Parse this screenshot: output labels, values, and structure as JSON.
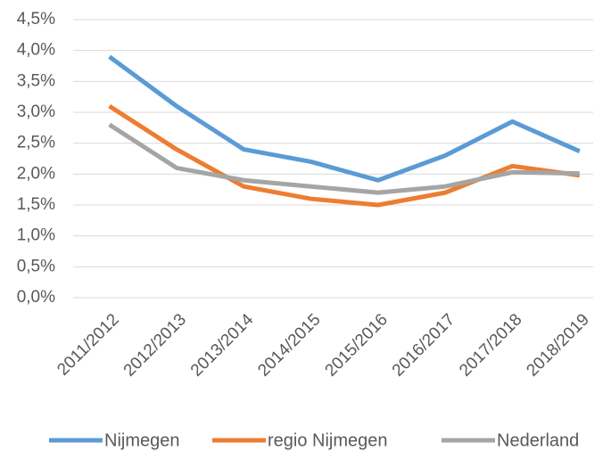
{
  "chart_data": {
    "type": "line",
    "categories": [
      "2011/2012",
      "2012/2013",
      "2013/2014",
      "2014/2015",
      "2015/2016",
      "2016/2017",
      "2017/2018",
      "2018/2019"
    ],
    "series": [
      {
        "name": "Nijmegen",
        "color": "#5b9bd5",
        "values": [
          3.9,
          3.1,
          2.4,
          2.2,
          1.9,
          2.3,
          2.85,
          2.37
        ]
      },
      {
        "name": "regio Nijmegen",
        "color": "#ed7d31",
        "values": [
          3.1,
          2.4,
          1.8,
          1.6,
          1.5,
          1.7,
          2.13,
          1.98
        ]
      },
      {
        "name": "Nederland",
        "color": "#a5a5a5",
        "values": [
          2.8,
          2.1,
          1.9,
          1.8,
          1.7,
          1.8,
          2.03,
          2.01
        ]
      }
    ],
    "ylim": [
      0,
      4.5
    ],
    "yticks": [
      {
        "value": 0,
        "label": "0,0%"
      },
      {
        "value": 0.5,
        "label": "0,5%"
      },
      {
        "value": 1,
        "label": "1,0%"
      },
      {
        "value": 1.5,
        "label": "1,5%"
      },
      {
        "value": 2,
        "label": "2,0%"
      },
      {
        "value": 2.5,
        "label": "2,5%"
      },
      {
        "value": 3,
        "label": "3,0%"
      },
      {
        "value": 3.5,
        "label": "3,5%"
      },
      {
        "value": 4,
        "label": "4,0%"
      },
      {
        "value": 4.5,
        "label": "4,5%"
      }
    ],
    "grid": true,
    "legend": "bottom"
  }
}
